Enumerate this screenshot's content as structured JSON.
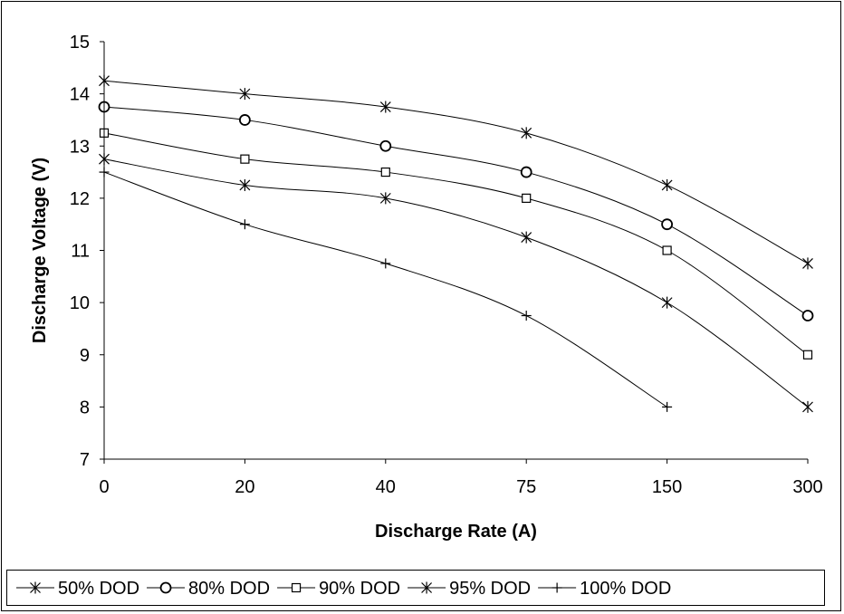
{
  "chart_data": {
    "type": "line",
    "xlabel": "Discharge Rate (A)",
    "ylabel": "Discharge Voltage (V)",
    "categories": [
      "0",
      "20",
      "40",
      "75",
      "150",
      "300"
    ],
    "ylim": [
      7,
      15
    ],
    "yticks": [
      "7",
      "8",
      "9",
      "10",
      "11",
      "12",
      "13",
      "14",
      "15"
    ],
    "grid": false,
    "legend_position": "bottom",
    "series": [
      {
        "name": "50% DOD",
        "marker": "asterisk",
        "values": [
          14.25,
          14.0,
          13.75,
          13.25,
          12.25,
          10.75
        ]
      },
      {
        "name": "80% DOD",
        "marker": "circle",
        "values": [
          13.75,
          13.5,
          13.0,
          12.5,
          11.5,
          9.75
        ]
      },
      {
        "name": "90% DOD",
        "marker": "square",
        "values": [
          13.25,
          12.75,
          12.5,
          12.0,
          11.0,
          9.0
        ]
      },
      {
        "name": "95% DOD",
        "marker": "asterisk",
        "values": [
          12.75,
          12.25,
          12.0,
          11.25,
          10.0,
          8.0
        ]
      },
      {
        "name": "100% DOD",
        "marker": "plus",
        "values": [
          12.5,
          11.5,
          10.75,
          9.75,
          8.0,
          null
        ]
      }
    ],
    "line_color": "#000000"
  }
}
